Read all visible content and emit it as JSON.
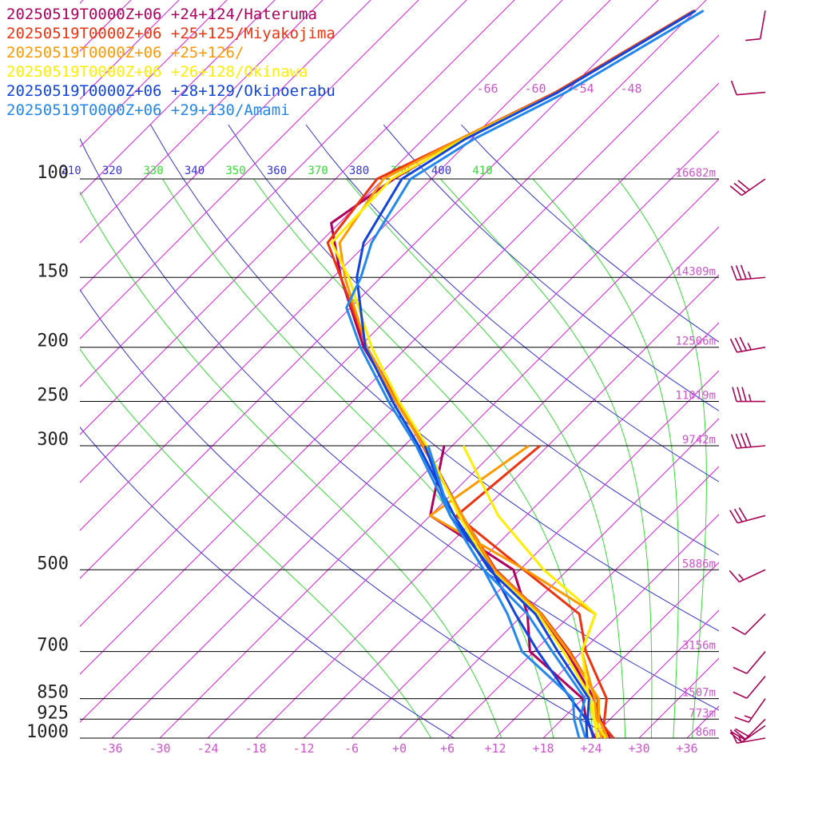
{
  "legend": [
    {
      "label": "20250519T0000Z+06 +24+124/Hateruma",
      "color": "#b0005f"
    },
    {
      "label": "20250519T0000Z+06 +25+125/Miyakojima",
      "color": "#ee3311"
    },
    {
      "label": "20250519T0000Z+06 +25+126/",
      "color": "#ff9900"
    },
    {
      "label": "20250519T0000Z+06 +26+128/Okinawa",
      "color": "#ffee00"
    },
    {
      "label": "20250519T0000Z+06 +28+129/Okinoerabu",
      "color": "#1144dd"
    },
    {
      "label": "20250519T0000Z+06 +29+130/Amami",
      "color": "#2288ee"
    }
  ],
  "chart_data": {
    "type": "line",
    "xlim": [
      -40,
      40
    ],
    "ylim_hpa": [
      1000,
      100
    ],
    "log_pressure": true,
    "pressure_levels": [
      {
        "label": "100",
        "p": 100,
        "height": "16682m"
      },
      {
        "label": "150",
        "p": 150,
        "height": "14309m"
      },
      {
        "label": "200",
        "p": 200,
        "height": "12506m"
      },
      {
        "label": "250",
        "p": 250,
        "height": "11019m"
      },
      {
        "label": "300",
        "p": 300,
        "height": "9742m"
      },
      {
        "label": "500",
        "p": 500,
        "height": "5886m"
      },
      {
        "label": "700",
        "p": 700,
        "height": "3156m"
      },
      {
        "label": "850",
        "p": 850,
        "height": "1507m"
      },
      {
        "label": "925",
        "p": 925,
        "height": "773m"
      },
      {
        "label": "1000",
        "p": 1000,
        "height": "86m"
      }
    ],
    "x_ticks": [
      {
        "label": "-36",
        "value": -36
      },
      {
        "label": "-30",
        "value": -30
      },
      {
        "label": "-24",
        "value": -24
      },
      {
        "label": "-18",
        "value": -18
      },
      {
        "label": "-12",
        "value": -12
      },
      {
        "label": "-6",
        "value": -6
      },
      {
        "label": "+0",
        "value": 0
      },
      {
        "label": "+6",
        "value": 6
      },
      {
        "label": "+12",
        "value": 12
      },
      {
        "label": "+18",
        "value": 18
      },
      {
        "label": "+24",
        "value": 24
      },
      {
        "label": "+30",
        "value": 30
      },
      {
        "label": "+36",
        "value": 36
      }
    ],
    "isotherm_labels": [
      {
        "label": "-66",
        "value": -66
      },
      {
        "label": "-60",
        "value": -60
      },
      {
        "label": "-54",
        "value": -54
      },
      {
        "label": "-48",
        "value": -48
      }
    ],
    "theta_labels": [
      {
        "label": "310",
        "value": 310,
        "family": "dry"
      },
      {
        "label": "320",
        "value": 320,
        "family": "dry"
      },
      {
        "label": "330",
        "value": 330,
        "family": "moist"
      },
      {
        "label": "340",
        "value": 340,
        "family": "dry"
      },
      {
        "label": "350",
        "value": 350,
        "family": "moist"
      },
      {
        "label": "360",
        "value": 360,
        "family": "dry"
      },
      {
        "label": "370",
        "value": 370,
        "family": "moist"
      },
      {
        "label": "380",
        "value": 380,
        "family": "dry"
      },
      {
        "label": "390",
        "value": 390,
        "family": "moist"
      },
      {
        "label": "400",
        "value": 400,
        "family": "dry"
      },
      {
        "label": "410",
        "value": 410,
        "family": "moist"
      }
    ],
    "dry_adiabats_theta": [
      280,
      300,
      320,
      340,
      360,
      380,
      400,
      420
    ],
    "moist_adiabats_theta": [
      290,
      310,
      330,
      350,
      370,
      390,
      410,
      430
    ],
    "colors": {
      "isotherm": "#dd22dd",
      "dry_adiabat": "#3333dd",
      "moist_adiabat": "#33dd33",
      "isobar": "#000000",
      "wind": "#aa0055",
      "tick_label": "#cc55cc",
      "pressure_label": "#222222"
    },
    "series": [
      {
        "name": "Hateruma",
        "color": "#b0005f",
        "temperature": [
          [
            1000,
            26.3
          ],
          [
            925,
            22.8
          ],
          [
            850,
            19.4
          ],
          [
            700,
            10.1
          ],
          [
            600,
            2.0
          ],
          [
            500,
            -9.4
          ],
          [
            400,
            -20.0
          ],
          [
            300,
            -33.4
          ],
          [
            250,
            -42.6
          ],
          [
            200,
            -53.4
          ],
          [
            150,
            -65.0
          ],
          [
            120,
            -73.0
          ],
          [
            100,
            -70.7
          ],
          [
            85,
            -67.3
          ],
          [
            70,
            -61.0
          ],
          [
            50,
            -54.0
          ]
        ],
        "dewpoint": [
          [
            1000,
            24.5
          ],
          [
            925,
            21.0
          ],
          [
            850,
            18.0
          ],
          [
            700,
            5.5
          ],
          [
            600,
            0.5
          ],
          [
            500,
            -6.8
          ],
          [
            400,
            -24.0
          ],
          [
            300,
            -31.0
          ]
        ]
      },
      {
        "name": "Miyakojima",
        "color": "#ee3311",
        "temperature": [
          [
            1000,
            26.8
          ],
          [
            925,
            22.5
          ],
          [
            850,
            19.9
          ],
          [
            700,
            10.5
          ],
          [
            600,
            2.3
          ],
          [
            500,
            -9.0
          ],
          [
            400,
            -20.0
          ],
          [
            300,
            -33.7
          ],
          [
            250,
            -42.4
          ],
          [
            200,
            -53.0
          ],
          [
            150,
            -65.0
          ],
          [
            130,
            -71.0
          ],
          [
            100,
            -72.8
          ],
          [
            85,
            -67.5
          ],
          [
            70,
            -61.3
          ],
          [
            50,
            -54.2
          ]
        ],
        "dewpoint": [
          [
            1000,
            25.5
          ],
          [
            925,
            23.3
          ],
          [
            850,
            21.0
          ],
          [
            700,
            12.5
          ],
          [
            600,
            7.0
          ],
          [
            500,
            -5.5
          ],
          [
            400,
            -20.7
          ],
          [
            300,
            -19.0
          ]
        ]
      },
      {
        "name": "+25+126",
        "color": "#ff9900",
        "temperature": [
          [
            1000,
            26.1
          ],
          [
            925,
            22.6
          ],
          [
            850,
            20.0
          ],
          [
            700,
            10.3
          ],
          [
            600,
            2.2
          ],
          [
            500,
            -9.2
          ],
          [
            400,
            -20.0
          ],
          [
            300,
            -33.6
          ],
          [
            250,
            -42.6
          ],
          [
            200,
            -53.0
          ],
          [
            150,
            -64.5
          ],
          [
            130,
            -69.5
          ],
          [
            100,
            -72.0
          ],
          [
            85,
            -67.5
          ],
          [
            70,
            -61.0
          ],
          [
            50,
            -54.0
          ]
        ],
        "dewpoint": [
          [
            1000,
            25.3
          ],
          [
            925,
            22.3
          ],
          [
            850,
            19.5
          ],
          [
            700,
            12.0
          ],
          [
            600,
            9.0
          ],
          [
            500,
            -5.3
          ],
          [
            400,
            -24.0
          ],
          [
            300,
            -20.4
          ]
        ]
      },
      {
        "name": "Okinawa",
        "color": "#ffee00",
        "temperature": [
          [
            1000,
            25.8
          ],
          [
            925,
            22.0
          ],
          [
            850,
            19.1
          ],
          [
            700,
            9.7
          ],
          [
            600,
            1.8
          ],
          [
            500,
            -9.6
          ],
          [
            400,
            -20.4
          ],
          [
            300,
            -33.2
          ],
          [
            250,
            -42.2
          ],
          [
            200,
            -52.4
          ],
          [
            150,
            -64.0
          ],
          [
            130,
            -70.5
          ],
          [
            100,
            -71.0
          ],
          [
            85,
            -67.0
          ],
          [
            70,
            -61.0
          ],
          [
            50,
            -54.0
          ]
        ],
        "dewpoint": [
          [
            1000,
            24.8
          ],
          [
            925,
            22.0
          ],
          [
            850,
            18.8
          ],
          [
            700,
            12.0
          ],
          [
            600,
            9.0
          ],
          [
            500,
            -3.0
          ],
          [
            400,
            -15.5
          ],
          [
            300,
            -28.6
          ]
        ]
      },
      {
        "name": "Okinoerabu",
        "color": "#1144dd",
        "temperature": [
          [
            1000,
            24.3
          ],
          [
            925,
            21.2
          ],
          [
            850,
            18.8
          ],
          [
            700,
            9.0
          ],
          [
            600,
            1.5
          ],
          [
            500,
            -9.8
          ],
          [
            400,
            -21.0
          ],
          [
            300,
            -34.2
          ],
          [
            250,
            -43.0
          ],
          [
            200,
            -53.2
          ],
          [
            150,
            -63.0
          ],
          [
            130,
            -66.5
          ],
          [
            100,
            -69.7
          ],
          [
            85,
            -66.8
          ],
          [
            70,
            -61.0
          ],
          [
            50,
            -54.0
          ]
        ],
        "dewpoint": [
          [
            1000,
            23.5
          ],
          [
            925,
            21.0
          ],
          [
            850,
            16.5
          ],
          [
            700,
            6.5
          ],
          [
            600,
            -1.0
          ],
          [
            500,
            -9.5
          ],
          [
            400,
            -21.5
          ],
          [
            300,
            -33.4
          ]
        ]
      },
      {
        "name": "Amami",
        "color": "#2288ee",
        "temperature": [
          [
            1000,
            23.3
          ],
          [
            925,
            20.2
          ],
          [
            850,
            18.3
          ],
          [
            700,
            8.3
          ],
          [
            600,
            0.5
          ],
          [
            500,
            -10.5
          ],
          [
            400,
            -21.5
          ],
          [
            300,
            -34.5
          ],
          [
            250,
            -43.5
          ],
          [
            200,
            -53.8
          ],
          [
            170,
            -60.5
          ],
          [
            150,
            -62.5
          ],
          [
            130,
            -65.5
          ],
          [
            100,
            -68.6
          ],
          [
            85,
            -65.7
          ],
          [
            70,
            -60.0
          ],
          [
            50,
            -53.0
          ]
        ],
        "dewpoint": [
          [
            1000,
            22.5
          ],
          [
            925,
            19.5
          ],
          [
            850,
            16.8
          ],
          [
            700,
            4.5
          ],
          [
            600,
            -2.0
          ],
          [
            500,
            -10.5
          ],
          [
            400,
            -21.5
          ],
          [
            300,
            -33.0
          ]
        ]
      }
    ],
    "wind_barbs": [
      {
        "p": 1000,
        "spd": 15,
        "dir": 260
      },
      {
        "p": 950,
        "spd": 20,
        "dir": 235
      },
      {
        "p": 925,
        "spd": 20,
        "dir": 225
      },
      {
        "p": 850,
        "spd": 15,
        "dir": 215
      },
      {
        "p": 775,
        "spd": 10,
        "dir": 220
      },
      {
        "p": 700,
        "spd": 10,
        "dir": 220
      },
      {
        "p": 600,
        "spd": 10,
        "dir": 225
      },
      {
        "p": 500,
        "spd": 15,
        "dir": 245
      },
      {
        "p": 400,
        "spd": 30,
        "dir": 255
      },
      {
        "p": 300,
        "spd": 40,
        "dir": 265
      },
      {
        "p": 250,
        "spd": 35,
        "dir": 270
      },
      {
        "p": 200,
        "spd": 35,
        "dir": 260
      },
      {
        "p": 150,
        "spd": 35,
        "dir": 265
      },
      {
        "p": 100,
        "spd": 30,
        "dir": 235
      },
      {
        "p": 70,
        "spd": 10,
        "dir": 265
      },
      {
        "p": 50,
        "spd": 10,
        "dir": 190
      }
    ]
  }
}
